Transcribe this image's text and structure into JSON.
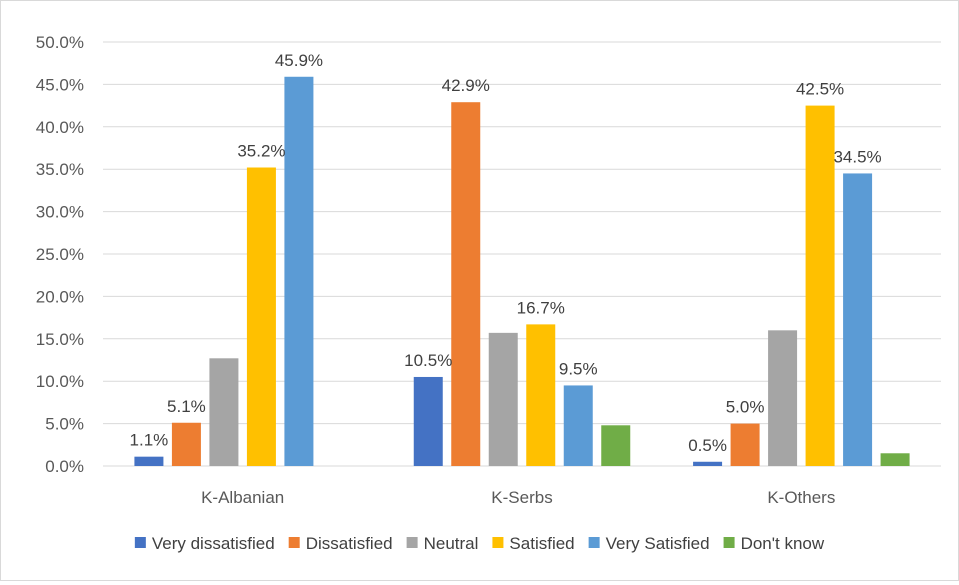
{
  "chart_data": {
    "type": "bar",
    "title": "",
    "xlabel": "",
    "ylabel": "",
    "ylim": [
      0,
      0.5
    ],
    "yticks": [
      "0.0%",
      "5.0%",
      "10.0%",
      "15.0%",
      "20.0%",
      "25.0%",
      "30.0%",
      "35.0%",
      "40.0%",
      "45.0%",
      "50.0%"
    ],
    "grid": true,
    "legend_position": "bottom",
    "categories": [
      "K-Albanian",
      "K-Serbs",
      "K-Others"
    ],
    "series": [
      {
        "name": "Very dissatisfied",
        "color": "#4472C4",
        "values": [
          0.011,
          0.105,
          0.005
        ],
        "labels": [
          "1.1%",
          "10.5%",
          "0.5%"
        ]
      },
      {
        "name": "Dissatisfied",
        "color": "#ED7D31",
        "values": [
          0.051,
          0.429,
          0.05
        ],
        "labels": [
          "5.1%",
          "42.9%",
          "5.0%"
        ]
      },
      {
        "name": "Neutral",
        "color": "#A5A5A5",
        "values": [
          0.127,
          0.157,
          0.16
        ],
        "labels": [
          "",
          "",
          ""
        ]
      },
      {
        "name": "Satisfied",
        "color": "#FFC000",
        "values": [
          0.352,
          0.167,
          0.425
        ],
        "labels": [
          "35.2%",
          "16.7%",
          "42.5%"
        ]
      },
      {
        "name": "Very Satisfied",
        "color": "#5B9BD5",
        "values": [
          0.459,
          0.095,
          0.345
        ],
        "labels": [
          "45.9%",
          "9.5%",
          "34.5%"
        ]
      },
      {
        "name": "Don't know",
        "color": "#70AD47",
        "values": [
          0.0,
          0.048,
          0.015
        ],
        "labels": [
          "",
          "",
          ""
        ]
      }
    ]
  }
}
